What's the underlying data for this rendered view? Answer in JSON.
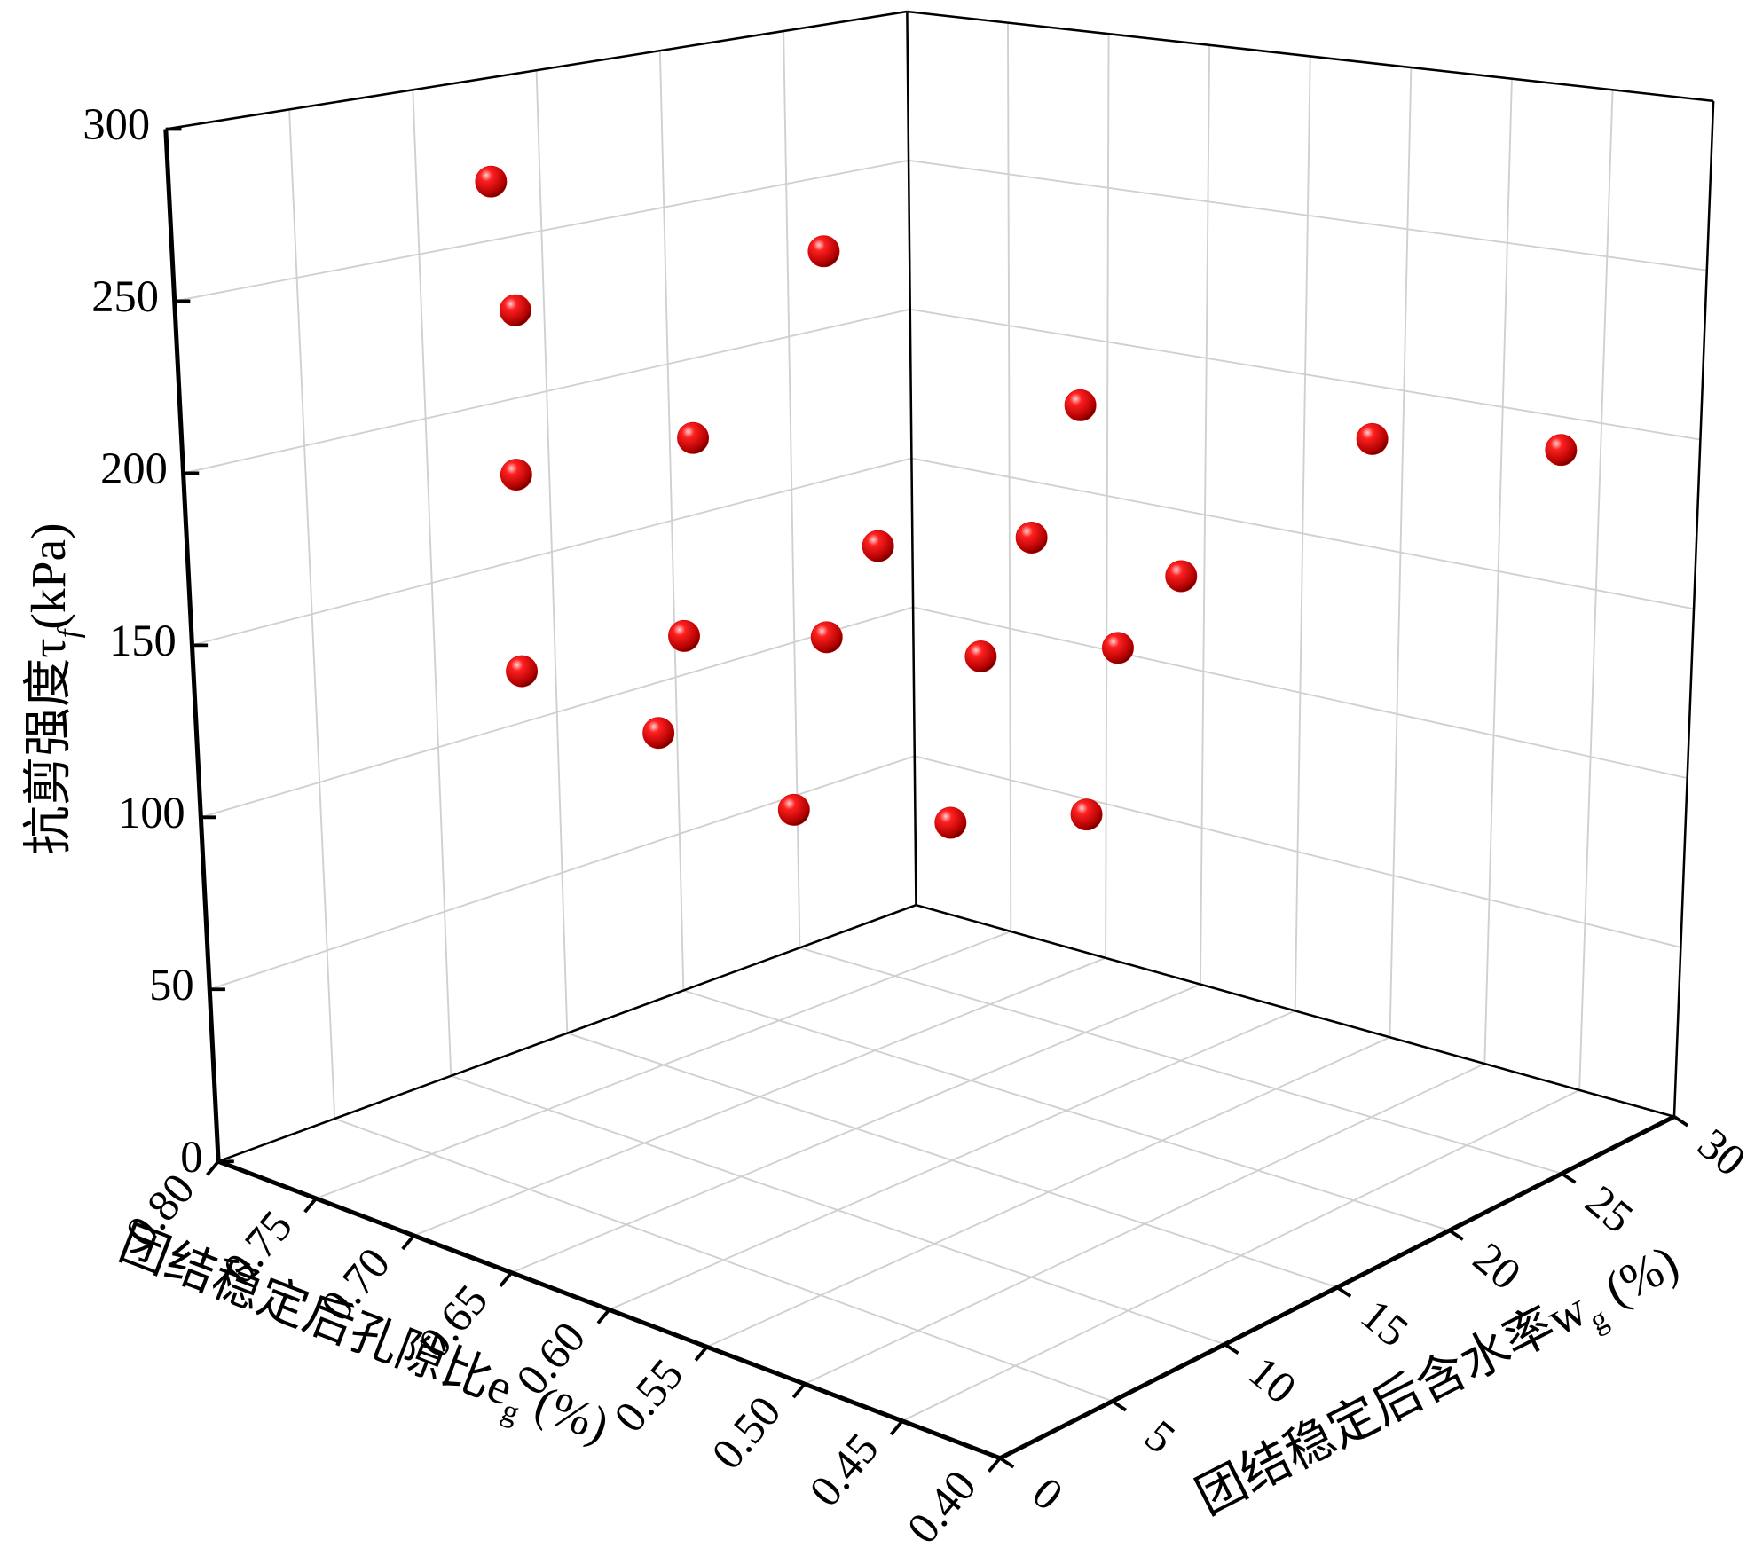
{
  "chart_data": {
    "type": "scatter3d",
    "x_label": {
      "text": "团结稳定后孔隙比e",
      "sub": "g",
      "unit": "(%)"
    },
    "y_label": {
      "text": "团结稳定后含水率w",
      "sub": "g",
      "unit": "(%)"
    },
    "z_label": {
      "text": "抗剪强度τ",
      "sub": "f",
      "unit": "(kPa)"
    },
    "xlim": [
      0.4,
      0.8
    ],
    "xticks": [
      {
        "value": 0.8,
        "label": "0.80"
      },
      0.75,
      {
        "value": 0.7,
        "label": "0.70"
      },
      0.65,
      {
        "value": 0.6,
        "label": "0.60"
      },
      0.55,
      {
        "value": 0.5,
        "label": "0.50"
      },
      0.45,
      {
        "value": 0.4,
        "label": "0.40"
      }
    ],
    "ylim": [
      0,
      30
    ],
    "yticks": [
      0,
      5,
      10,
      15,
      20,
      25,
      30
    ],
    "zlim": [
      0,
      300
    ],
    "zticks": [
      0,
      50,
      100,
      150,
      200,
      250,
      300
    ],
    "grid": true,
    "color": "#d40000",
    "x": [
      0.68,
      0.59,
      0.67,
      0.62,
      0.66,
      0.57,
      0.53,
      0.47,
      0.6,
      0.63,
      0.59,
      0.66,
      0.65,
      0.65,
      0.62,
      0.61,
      0.64,
      0.62,
      0.6,
      0.59
    ],
    "y": [
      3,
      9,
      3,
      6,
      2,
      18,
      27,
      30,
      12,
      21,
      24,
      2,
      8,
      14,
      18,
      23,
      6,
      10,
      15,
      20
    ],
    "z": [
      290,
      270,
      255,
      220,
      212,
      215,
      193,
      190,
      182,
      164,
      151,
      158,
      158,
      146,
      136,
      129,
      136,
      109,
      97,
      89
    ]
  }
}
